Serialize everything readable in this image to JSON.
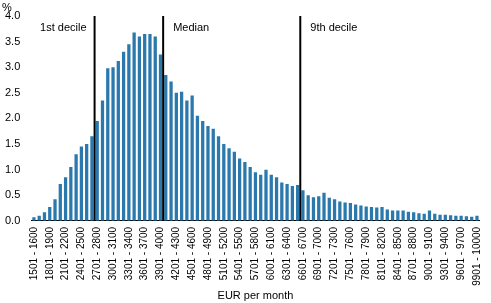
{
  "chart_data": {
    "type": "bar",
    "x_label": "EUR per month",
    "y_label": "%",
    "categories": [
      "1501 - 1600",
      null,
      null,
      "1801 - 1900",
      null,
      null,
      "2101 - 2200",
      null,
      null,
      "2401 - 2500",
      null,
      null,
      "2701 - 2800",
      null,
      null,
      "3001 - 3100",
      null,
      null,
      "3301 - 3400",
      null,
      null,
      "3601 - 3700",
      null,
      null,
      "3901 - 4000",
      null,
      null,
      "4201 - 4300",
      null,
      null,
      "4501 - 4600",
      null,
      null,
      "4801 - 4900",
      null,
      null,
      "5101 - 5200",
      null,
      null,
      "5401 - 5500",
      null,
      null,
      "5701 - 5800",
      null,
      null,
      "6001 - 6100",
      null,
      null,
      "6301 - 6400",
      null,
      null,
      "6601 - 6700",
      null,
      null,
      "6901 - 7000",
      null,
      null,
      "7201 - 7300",
      null,
      null,
      "7501 - 7600",
      null,
      null,
      "7801 - 7900",
      null,
      null,
      "8101 - 8200",
      null,
      null,
      "8401 - 8500",
      null,
      null,
      "8701 - 8800",
      null,
      null,
      "9001 - 9100",
      null,
      null,
      "9301 - 9400",
      null,
      null,
      "9601 - 9700",
      null,
      null,
      "9901 - 10000"
    ],
    "bins": [
      1500,
      1600,
      1700,
      1800,
      1900,
      2000,
      2100,
      2200,
      2300,
      2400,
      2500,
      2600,
      2700,
      2800,
      2900,
      3000,
      3100,
      3200,
      3300,
      3400,
      3500,
      3600,
      3700,
      3800,
      3900,
      4000,
      4100,
      4200,
      4300,
      4400,
      4500,
      4600,
      4700,
      4800,
      4900,
      5000,
      5100,
      5200,
      5300,
      5400,
      5500,
      5600,
      5700,
      5800,
      5900,
      6000,
      6100,
      6200,
      6300,
      6400,
      6500,
      6600,
      6700,
      6800,
      6900,
      7000,
      7100,
      7200,
      7300,
      7400,
      7500,
      7600,
      7700,
      7800,
      7900,
      8000,
      8100,
      8200,
      8300,
      8400,
      8500,
      8600,
      8700,
      8800,
      8900,
      9000,
      9100,
      9200,
      9300,
      9400,
      9500,
      9600,
      9700,
      9800,
      9900,
      10000
    ],
    "values": [
      0.07,
      0.1,
      0.17,
      0.27,
      0.42,
      0.72,
      0.85,
      1.05,
      1.3,
      1.45,
      1.5,
      1.65,
      1.95,
      2.35,
      2.98,
      3.0,
      3.12,
      3.3,
      3.45,
      3.68,
      3.6,
      3.65,
      3.65,
      3.6,
      3.25,
      2.85,
      2.72,
      2.5,
      2.52,
      2.35,
      2.45,
      2.05,
      1.95,
      1.85,
      1.8,
      1.65,
      1.5,
      1.42,
      1.35,
      1.22,
      1.15,
      1.05,
      0.95,
      0.9,
      1.0,
      0.9,
      0.85,
      0.75,
      0.72,
      0.68,
      0.7,
      0.6,
      0.5,
      0.46,
      0.48,
      0.55,
      0.45,
      0.42,
      0.38,
      0.36,
      0.35,
      0.32,
      0.3,
      0.28,
      0.27,
      0.26,
      0.27,
      0.22,
      0.2,
      0.2,
      0.2,
      0.18,
      0.17,
      0.15,
      0.14,
      0.2,
      0.14,
      0.12,
      0.12,
      0.11,
      0.1,
      0.1,
      0.09,
      0.08,
      0.1
    ],
    "color": "#2a78ac",
    "ylim": [
      0,
      4
    ],
    "yticks": [
      {
        "value": 0,
        "label": "0.0"
      },
      {
        "value": 0.5,
        "label": "0.5"
      },
      {
        "value": 1,
        "label": "1.0"
      },
      {
        "value": 1.5,
        "label": "1.5"
      },
      {
        "value": 2,
        "label": "2.0"
      },
      {
        "value": 2.5,
        "label": "2.5"
      },
      {
        "value": 3,
        "label": "3.0"
      },
      {
        "value": 3.5,
        "label": "3.5"
      },
      {
        "value": 4,
        "label": "4.0"
      }
    ],
    "grid": false,
    "legend": false,
    "annotations": [
      {
        "text": "1st decile",
        "x": 2700
      },
      {
        "text": "Median",
        "x": 4000
      },
      {
        "text": "9th decile",
        "x": 6600
      }
    ]
  }
}
